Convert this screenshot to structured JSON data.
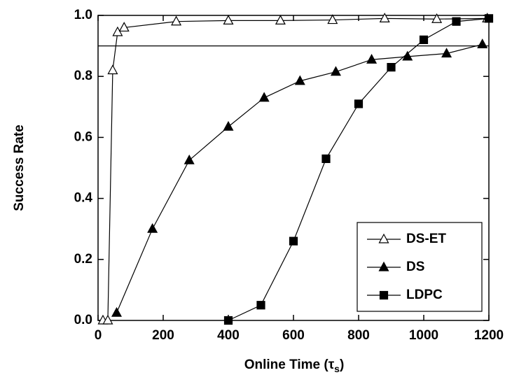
{
  "chart_data": {
    "type": "line",
    "xlabel": [
      "Online Time (τ",
      "s",
      ")"
    ],
    "ylabel": "Success Rate",
    "xlim": [
      0,
      1200
    ],
    "ylim": [
      0,
      1
    ],
    "xticks": [
      0,
      200,
      400,
      600,
      800,
      1000,
      1200
    ],
    "yticks": [
      {
        "value": 0,
        "label": "0.0"
      },
      {
        "value": 0.2,
        "label": "0.2"
      },
      {
        "value": 0.4,
        "label": "0.4"
      },
      {
        "value": 0.6,
        "label": "0.6"
      },
      {
        "value": 0.8,
        "label": "0.8"
      },
      {
        "value": 1,
        "label": "1.0"
      }
    ],
    "hline": 0.9,
    "legend": "lower right",
    "series": [
      {
        "name": "DS-ET",
        "color": "#000000",
        "marker": "open-triangle",
        "x": [
          15,
          30,
          45,
          60,
          80,
          240,
          400,
          560,
          720,
          880,
          1040,
          1195
        ],
        "values": [
          0,
          0,
          0.82,
          0.945,
          0.96,
          0.98,
          0.983,
          0.983,
          0.985,
          0.99,
          0.988,
          0.99
        ]
      },
      {
        "name": "DS",
        "color": "#000000",
        "marker": "triangle",
        "x": [
          57,
          167,
          280,
          400,
          510,
          620,
          730,
          840,
          950,
          1070,
          1180
        ],
        "values": [
          0.025,
          0.3,
          0.525,
          0.635,
          0.73,
          0.785,
          0.815,
          0.855,
          0.865,
          0.875,
          0.905
        ]
      },
      {
        "name": "LDPC",
        "color": "#000000",
        "marker": "square",
        "x": [
          400,
          500,
          600,
          700,
          800,
          900,
          1000,
          1100,
          1200
        ],
        "values": [
          0,
          0.05,
          0.26,
          0.53,
          0.71,
          0.83,
          0.92,
          0.98,
          0.99
        ]
      }
    ]
  }
}
